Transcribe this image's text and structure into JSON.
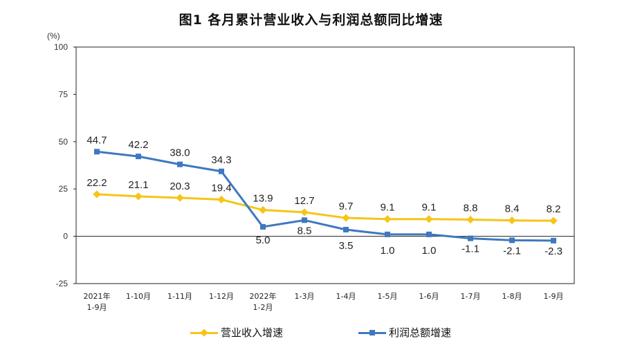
{
  "title": "图1 各月累计营业收入与利润总额同比增速",
  "chart_data": {
    "type": "line",
    "title": "图1 各月累计营业收入与利润总额同比增速",
    "unit_label": "(%)",
    "categories": [
      [
        "2021年",
        "1-9月"
      ],
      [
        "1-10月"
      ],
      [
        "1-11月"
      ],
      [
        "1-12月"
      ],
      [
        "2022年",
        "1-2月"
      ],
      [
        "1-3月"
      ],
      [
        "1-4月"
      ],
      [
        "1-5月"
      ],
      [
        "1-6月"
      ],
      [
        "1-7月"
      ],
      [
        "1-8月"
      ],
      [
        "1-9月"
      ]
    ],
    "ylim": [
      -25,
      100
    ],
    "yticks": [
      -25,
      0,
      25,
      50,
      75,
      100
    ],
    "grid": false,
    "legend_position": "bottom",
    "series": [
      {
        "name": "营业收入增速",
        "color": "#F5C518",
        "marker": "diamond",
        "values": [
          22.2,
          21.1,
          20.3,
          19.4,
          13.9,
          12.7,
          9.7,
          9.1,
          9.1,
          8.8,
          8.4,
          8.2
        ],
        "labels": [
          "22.2",
          "21.1",
          "20.3",
          "19.4",
          "13.9",
          "12.7",
          "9.7",
          "9.1",
          "9.1",
          "8.8",
          "8.4",
          "8.2"
        ]
      },
      {
        "name": "利润总额增速",
        "color": "#3E78C0",
        "marker": "square",
        "values": [
          44.7,
          42.2,
          38.0,
          34.3,
          5.0,
          8.5,
          3.5,
          1.0,
          1.0,
          -1.1,
          -2.1,
          -2.3
        ],
        "labels": [
          "44.7",
          "42.2",
          "38.0",
          "34.3",
          "5.0",
          "8.5",
          "3.5",
          "1.0",
          "1.0",
          "-1.1",
          "-2.1",
          "-2.3"
        ]
      }
    ]
  }
}
